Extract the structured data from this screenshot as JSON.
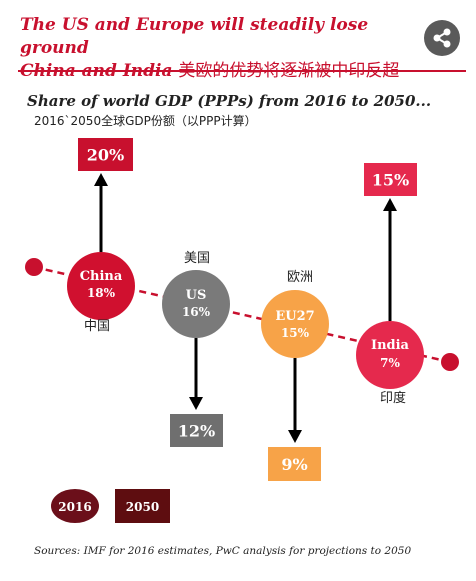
{
  "header": {
    "title_line1": "The US and Europe will steadily lose ground",
    "title_line2_en": "China and India",
    "title_line2_zh": "美欧的优势将逐渐被中印反超",
    "share_icon": "share-icon"
  },
  "chart_data": {
    "type": "bubble-change",
    "title": "Share of world GDP (PPPs) from 2016 to 2050...",
    "subtitle_zh": "2016`2050全球GDP份额（以PPP计算）",
    "series": [
      {
        "name": "2016",
        "color": "#c8102e"
      },
      {
        "name": "2050",
        "color": "#8b1a1a"
      }
    ],
    "countries": [
      {
        "name": "China",
        "name_zh": "中国",
        "value_2016": 18,
        "value_2050": 20,
        "label_2016": "18%",
        "label_2050": "20%",
        "direction": "up",
        "color": "#d0102f",
        "box_color": "#c8102e"
      },
      {
        "name": "US",
        "name_zh": "美国",
        "value_2016": 16,
        "value_2050": 12,
        "label_2016": "16%",
        "label_2050": "12%",
        "direction": "down",
        "color": "#7a7a7a",
        "box_color": "#6f6f6f"
      },
      {
        "name": "EU27",
        "name_zh": "欧洲",
        "value_2016": 15,
        "value_2050": 9,
        "label_2016": "15%",
        "label_2050": "9%",
        "direction": "down",
        "color": "#f7a348",
        "box_color": "#f7a348"
      },
      {
        "name": "India",
        "name_zh": "印度",
        "value_2016": 7,
        "value_2050": 15,
        "label_2016": "7%",
        "label_2050": "15%",
        "direction": "up",
        "color": "#e5294d",
        "box_color": "#e5294d"
      }
    ],
    "legend": {
      "label_2016": "2016",
      "label_2050": "2050",
      "color_2016": "#6b0f1a",
      "color_2050": "#5e0d10",
      "placement": "bottom-left"
    },
    "source": "Sources: IMF for 2016 estimates, PwC analysis for projections to 2050"
  }
}
